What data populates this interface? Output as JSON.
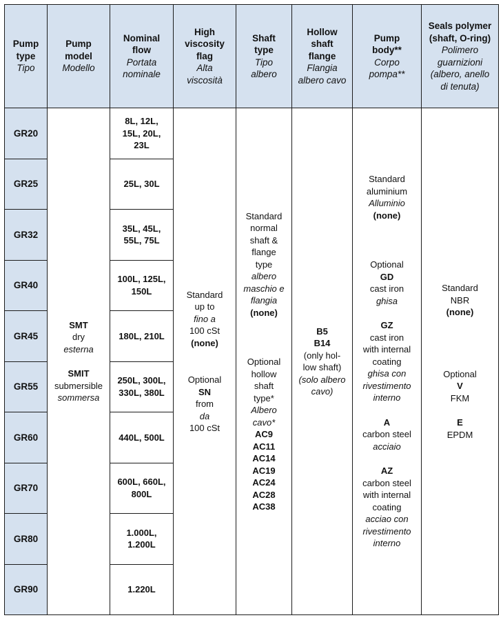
{
  "headers": [
    {
      "bold": [
        "Pump",
        "type"
      ],
      "italic": [
        "Tipo"
      ]
    },
    {
      "bold": [
        "Pump",
        "model"
      ],
      "italic": [
        "Modello"
      ]
    },
    {
      "bold": [
        "Nominal",
        "flow"
      ],
      "italic": [
        "Portata",
        "nominale"
      ]
    },
    {
      "bold": [
        "High",
        "viscosity",
        "flag"
      ],
      "italic": [
        "Alta",
        "viscosità"
      ]
    },
    {
      "bold": [
        "Shaft",
        "type"
      ],
      "italic": [
        "Tipo",
        "albero"
      ]
    },
    {
      "bold": [
        "Hollow",
        "shaft",
        "flange"
      ],
      "italic": [
        "Flangia",
        "albero cavo"
      ]
    },
    {
      "bold": [
        "Pump",
        "body**"
      ],
      "italic": [
        "Corpo",
        "pompa**"
      ]
    },
    {
      "bold": [
        "Seals polymer",
        "(shaft, O-ring)"
      ],
      "italic": [
        "Polimero",
        "guarnizioni",
        "(albero, anello",
        "di tenuta)"
      ]
    }
  ],
  "pump_types": [
    "GR20",
    "GR25",
    "GR32",
    "GR40",
    "GR45",
    "GR55",
    "GR60",
    "GR70",
    "GR80",
    "GR90"
  ],
  "nominal_flows": [
    [
      "8L, 12L,",
      "15L, 20L,",
      "23L"
    ],
    [
      "25L, 30L"
    ],
    [
      "35L, 45L,",
      "55L, 75L"
    ],
    [
      "100L, 125L,",
      "150L"
    ],
    [
      "180L, 210L"
    ],
    [
      "250L, 300L,",
      "330L, 380L"
    ],
    [
      "440L, 500L"
    ],
    [
      "600L, 660L,",
      "800L"
    ],
    [
      "1.000L,",
      "1.200L"
    ],
    [
      "1.220L"
    ]
  ],
  "pump_model": [
    {
      "t": "SMT",
      "s": "b"
    },
    {
      "t": "dry",
      "s": "n"
    },
    {
      "t": "esterna",
      "s": "i"
    },
    {
      "t": "",
      "s": "gap"
    },
    {
      "t": "SMIT",
      "s": "b"
    },
    {
      "t": "submersible",
      "s": "n"
    },
    {
      "t": "sommersa",
      "s": "i"
    }
  ],
  "viscosity": [
    {
      "t": "Standard",
      "s": "n"
    },
    {
      "t": "up to",
      "s": "n"
    },
    {
      "t": "fino a",
      "s": "i"
    },
    {
      "t": "100 cSt",
      "s": "n"
    },
    {
      "t": "(none)",
      "s": "b"
    },
    {
      "t": "",
      "s": "gap"
    },
    {
      "t": "",
      "s": "gap"
    },
    {
      "t": "Optional",
      "s": "n"
    },
    {
      "t": "SN",
      "s": "b"
    },
    {
      "t": "from",
      "s": "n"
    },
    {
      "t": "da",
      "s": "i"
    },
    {
      "t": "100 cSt",
      "s": "n"
    }
  ],
  "shaft": [
    {
      "t": "Standard",
      "s": "n"
    },
    {
      "t": "normal",
      "s": "n"
    },
    {
      "t": "shaft &",
      "s": "n"
    },
    {
      "t": "flange",
      "s": "n"
    },
    {
      "t": "type",
      "s": "n"
    },
    {
      "t": "albero",
      "s": "i"
    },
    {
      "t": "maschio e",
      "s": "i"
    },
    {
      "t": "flangia",
      "s": "i"
    },
    {
      "t": "(none)",
      "s": "b"
    },
    {
      "t": "",
      "s": "gap"
    },
    {
      "t": "",
      "s": "gap"
    },
    {
      "t": "",
      "s": "gap"
    },
    {
      "t": "Optional",
      "s": "n"
    },
    {
      "t": "hollow",
      "s": "n"
    },
    {
      "t": "shaft",
      "s": "n"
    },
    {
      "t": "type*",
      "s": "n"
    },
    {
      "t": "Albero",
      "s": "i"
    },
    {
      "t": "cavo*",
      "s": "i"
    },
    {
      "t": "AC9",
      "s": "b"
    },
    {
      "t": "AC11",
      "s": "b"
    },
    {
      "t": "AC14",
      "s": "b"
    },
    {
      "t": "AC19",
      "s": "b"
    },
    {
      "t": "AC24",
      "s": "b"
    },
    {
      "t": "AC28",
      "s": "b"
    },
    {
      "t": "AC38",
      "s": "b"
    }
  ],
  "hollow_flange": [
    {
      "t": "B5",
      "s": "b"
    },
    {
      "t": "B14",
      "s": "b"
    },
    {
      "t": "(only hol-",
      "s": "n"
    },
    {
      "t": "low shaft)",
      "s": "n"
    },
    {
      "t": "(solo albero",
      "s": "i"
    },
    {
      "t": "cavo)",
      "s": "i"
    }
  ],
  "pump_body": [
    {
      "t": "Standard",
      "s": "n"
    },
    {
      "t": "aluminium",
      "s": "n"
    },
    {
      "t": "Alluminio",
      "s": "i"
    },
    {
      "t": "(none)",
      "s": "b"
    },
    {
      "t": "",
      "s": "gap"
    },
    {
      "t": "",
      "s": "gap"
    },
    {
      "t": "",
      "s": "gap"
    },
    {
      "t": "Optional",
      "s": "n"
    },
    {
      "t": "GD",
      "s": "b"
    },
    {
      "t": "cast iron",
      "s": "n"
    },
    {
      "t": "ghisa",
      "s": "i"
    },
    {
      "t": "",
      "s": "gap"
    },
    {
      "t": "GZ",
      "s": "b"
    },
    {
      "t": "cast iron",
      "s": "n"
    },
    {
      "t": "with internal",
      "s": "n"
    },
    {
      "t": "coating",
      "s": "n"
    },
    {
      "t": "ghisa con",
      "s": "i"
    },
    {
      "t": "rivestimento",
      "s": "i"
    },
    {
      "t": "interno",
      "s": "i"
    },
    {
      "t": "",
      "s": "gap"
    },
    {
      "t": "A",
      "s": "b"
    },
    {
      "t": "carbon steel",
      "s": "n"
    },
    {
      "t": "acciaio",
      "s": "i"
    },
    {
      "t": "",
      "s": "gap"
    },
    {
      "t": "AZ",
      "s": "b"
    },
    {
      "t": "carbon steel",
      "s": "n"
    },
    {
      "t": "with internal",
      "s": "n"
    },
    {
      "t": "coating",
      "s": "n"
    },
    {
      "t": "acciao con",
      "s": "i"
    },
    {
      "t": "rivestimento",
      "s": "i"
    },
    {
      "t": "interno",
      "s": "i"
    }
  ],
  "seals": [
    {
      "t": "Standard",
      "s": "n"
    },
    {
      "t": "NBR",
      "s": "n"
    },
    {
      "t": "(none)",
      "s": "b"
    },
    {
      "t": "",
      "s": "gap"
    },
    {
      "t": "",
      "s": "gap"
    },
    {
      "t": "",
      "s": "gap"
    },
    {
      "t": "",
      "s": "gap"
    },
    {
      "t": "Optional",
      "s": "n"
    },
    {
      "t": "V",
      "s": "b"
    },
    {
      "t": "FKM",
      "s": "n"
    },
    {
      "t": "",
      "s": "gap"
    },
    {
      "t": "E",
      "s": "b"
    },
    {
      "t": "EPDM",
      "s": "n"
    }
  ],
  "colors": {
    "header_bg": "#d5e1ef",
    "border": "#1b1b1b"
  }
}
